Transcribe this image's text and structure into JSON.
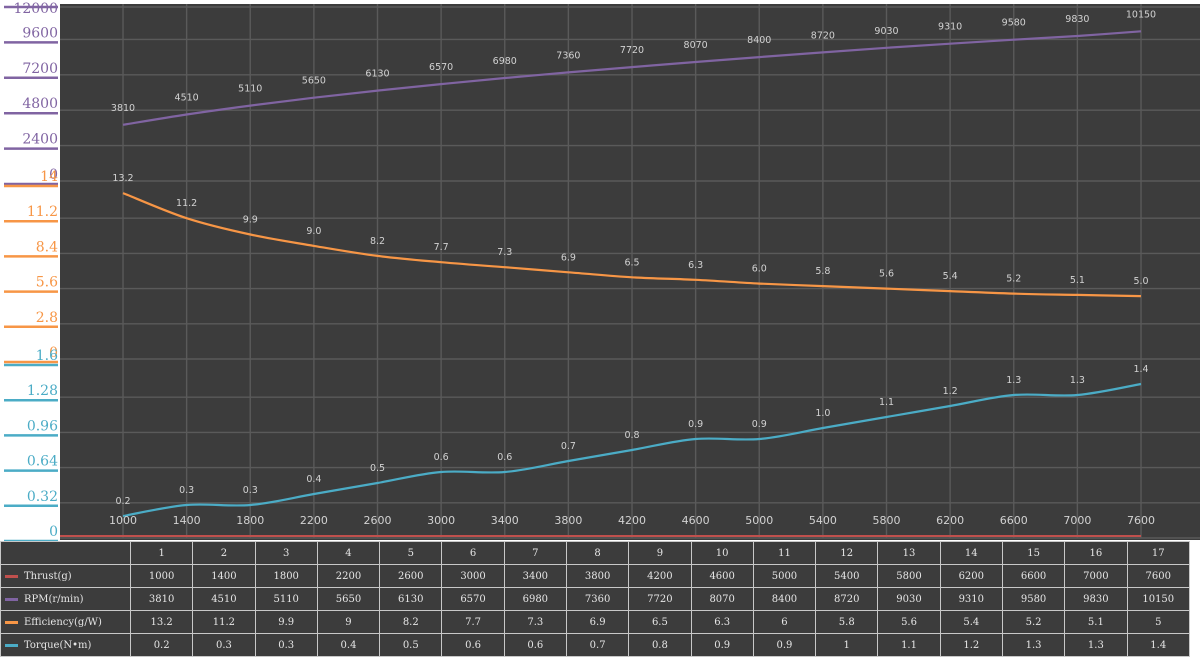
{
  "colors": {
    "background": "#3c3c3c",
    "grid": "#5a5a5a",
    "thrust": "#c0504d",
    "rpm": "#8064a2",
    "efficiency": "#f79646",
    "torque": "#4bacc6",
    "label": "#d2d2d2"
  },
  "chart_data": {
    "type": "line",
    "grid": true,
    "categories": [
      1000,
      1400,
      1800,
      2200,
      2600,
      3000,
      3400,
      3800,
      4200,
      4600,
      5000,
      5400,
      5800,
      6200,
      6600,
      7000,
      7600
    ],
    "axes": [
      {
        "series": "rpm",
        "ticks": [
          "12000",
          "9600",
          "7200",
          "4800",
          "2400",
          "0"
        ],
        "range": [
          0,
          12000
        ]
      },
      {
        "series": "efficiency",
        "ticks": [
          "14",
          "11.2",
          "8.4",
          "5.6",
          "2.8",
          "0"
        ],
        "range": [
          0,
          14
        ]
      },
      {
        "series": "torque",
        "ticks": [
          "1.6",
          "1.28",
          "0.96",
          "0.64",
          "0.32",
          "0"
        ],
        "range": [
          0,
          1.6
        ]
      }
    ],
    "series": [
      {
        "key": "rpm",
        "values": [
          3810,
          4510,
          5110,
          5650,
          6130,
          6570,
          6980,
          7360,
          7720,
          8070,
          8400,
          8720,
          9030,
          9310,
          9580,
          9830,
          10150
        ],
        "labels": [
          "3810",
          "4510",
          "5110",
          "5650",
          "6130",
          "6570",
          "6980",
          "7360",
          "7720",
          "8070",
          "8400",
          "8720",
          "9030",
          "9310",
          "9580",
          "9830",
          "10150"
        ]
      },
      {
        "key": "efficiency",
        "values": [
          13.2,
          11.2,
          9.9,
          9.0,
          8.2,
          7.7,
          7.3,
          6.9,
          6.5,
          6.3,
          6.0,
          5.8,
          5.6,
          5.4,
          5.2,
          5.1,
          5.0
        ],
        "labels": [
          "13.2",
          "11.2",
          "9.9",
          "9.0",
          "8.2",
          "7.7",
          "7.3",
          "6.9",
          "6.5",
          "6.3",
          "6.0",
          "5.8",
          "5.6",
          "5.4",
          "5.2",
          "5.1",
          "5.0"
        ]
      },
      {
        "key": "torque",
        "values": [
          0.2,
          0.3,
          0.3,
          0.4,
          0.5,
          0.6,
          0.6,
          0.7,
          0.8,
          0.9,
          0.9,
          1.0,
          1.1,
          1.2,
          1.3,
          1.3,
          1.4
        ],
        "labels": [
          "0.2",
          "0.3",
          "0.3",
          "0.4",
          "0.5",
          "0.6",
          "0.6",
          "0.7",
          "0.8",
          "0.9",
          "0.9",
          "1.0",
          "1.1",
          "1.2",
          "1.3",
          "1.3",
          "1.4"
        ]
      },
      {
        "key": "thrust",
        "values": [
          1000,
          1400,
          1800,
          2200,
          2600,
          3000,
          3400,
          3800,
          4200,
          4600,
          5000,
          5400,
          5800,
          6200,
          6600,
          7000,
          7600
        ]
      }
    ]
  },
  "table": {
    "columns": [
      "1",
      "2",
      "3",
      "4",
      "5",
      "6",
      "7",
      "8",
      "9",
      "10",
      "11",
      "12",
      "13",
      "14",
      "15",
      "16",
      "17"
    ],
    "rows": [
      {
        "key": "thrust",
        "name": "Thrust(g)",
        "cells": [
          "1000",
          "1400",
          "1800",
          "2200",
          "2600",
          "3000",
          "3400",
          "3800",
          "4200",
          "4600",
          "5000",
          "5400",
          "5800",
          "6200",
          "6600",
          "7000",
          "7600"
        ]
      },
      {
        "key": "rpm",
        "name": "RPM(r/min)",
        "cells": [
          "3810",
          "4510",
          "5110",
          "5650",
          "6130",
          "6570",
          "6980",
          "7360",
          "7720",
          "8070",
          "8400",
          "8720",
          "9030",
          "9310",
          "9580",
          "9830",
          "10150"
        ]
      },
      {
        "key": "efficiency",
        "name": "Efficiency(g/W)",
        "cells": [
          "13.2",
          "11.2",
          "9.9",
          "9",
          "8.2",
          "7.7",
          "7.3",
          "6.9",
          "6.5",
          "6.3",
          "6",
          "5.8",
          "5.6",
          "5.4",
          "5.2",
          "5.1",
          "5"
        ]
      },
      {
        "key": "torque",
        "name": "Torque(N•m)",
        "cells": [
          "0.2",
          "0.3",
          "0.3",
          "0.4",
          "0.5",
          "0.6",
          "0.6",
          "0.7",
          "0.8",
          "0.9",
          "0.9",
          "1",
          "1.1",
          "1.2",
          "1.3",
          "1.3",
          "1.4"
        ]
      }
    ]
  }
}
